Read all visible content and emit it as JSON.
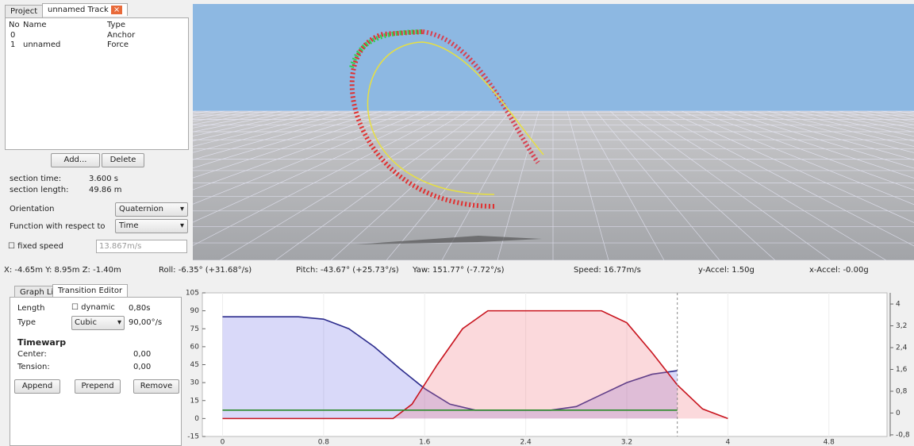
{
  "project_panel": {
    "tabs": [
      "Project",
      "unnamed Track"
    ],
    "columns": [
      "No",
      "Name",
      "Type"
    ],
    "rows": [
      {
        "no": "0",
        "type": "Anchor"
      },
      {
        "no": "1",
        "name": "unnamed",
        "type": "Force"
      }
    ],
    "buttons": [
      "Add...",
      "Delete"
    ],
    "section_time": {
      "label": "section time:",
      "value": "3.600 s"
    },
    "section_length": {
      "label": "section length:",
      "value": "49.86 m"
    },
    "orientation": {
      "label": "Orientation",
      "value": "Quaternion"
    },
    "function": {
      "label": "Function with respect to",
      "value": "Time"
    },
    "fixed_speed": {
      "label": "fixed speed",
      "value": "13.867m/s"
    }
  },
  "status_bar": [
    "X: -4.65m  Y: 8.95m  Z: -1.40m",
    "Roll: -6.35° (+31.68°/s)",
    "Pitch: -43.67° (+25.73°/s)",
    "Yaw: 151.77° (-7.72°/s)",
    "Speed: 16.77m/s",
    "y-Accel: 1.50g",
    "x-Accel: -0.00g"
  ],
  "editor_panel": {
    "tabs": [
      "Graph List",
      "Transition Editor"
    ],
    "length": {
      "label": "Length",
      "option": "dynamic",
      "value": "0,80s"
    },
    "type": {
      "label": "Type",
      "value": "Cubic",
      "rate": "90,00°/s"
    },
    "timewarp": "Timewarp",
    "center": {
      "label": "Center:",
      "value": "0,00"
    },
    "tension": {
      "label": "Tension:",
      "value": "0,00"
    },
    "buttons": [
      "Append",
      "Prepend",
      "Remove"
    ]
  },
  "chart_data": {
    "type": "line",
    "xlim": [
      -0.16,
      5.26
    ],
    "xticks": [
      0,
      0.8,
      1.6,
      2.4,
      3.2,
      4,
      4.8
    ],
    "ylim": [
      -15,
      105
    ],
    "yticks": [
      -15,
      0,
      15,
      30,
      45,
      60,
      75,
      90,
      105
    ],
    "y2lim": [
      -0.86,
      4.41
    ],
    "y2ticks": [
      {
        "value": -0.8,
        "label": "-0,8"
      },
      0,
      {
        "value": 0.8,
        "label": "0,8"
      },
      {
        "value": 1.6,
        "label": "1,6"
      },
      {
        "value": 2.4,
        "label": "2,4"
      },
      {
        "value": 3.2,
        "label": "3,2"
      },
      4
    ],
    "series": [
      {
        "color": "#2b2b8c",
        "fill": "rgba(120,120,235,0.28)",
        "x": [
          0,
          0.6,
          0.8,
          1.0,
          1.2,
          1.4,
          1.6,
          1.8,
          2.0,
          2.6,
          2.8,
          3.0,
          3.2,
          3.4,
          3.6
        ],
        "values": [
          85,
          85,
          83,
          75,
          60,
          42,
          25,
          12,
          7,
          7,
          10,
          20,
          30,
          37,
          40
        ]
      },
      {
        "color": "#c8141e",
        "fill": "rgba(240,120,130,0.28)",
        "x": [
          0,
          1.35,
          1.5,
          1.7,
          1.9,
          2.1,
          3.0,
          3.2,
          3.4,
          3.6,
          3.8,
          4.0
        ],
        "values": [
          0,
          0,
          12,
          45,
          75,
          90,
          90,
          80,
          55,
          28,
          8,
          0
        ]
      },
      {
        "color": "#2a8a2a",
        "x": [
          0,
          3.6
        ],
        "values": [
          7,
          7
        ]
      }
    ]
  }
}
